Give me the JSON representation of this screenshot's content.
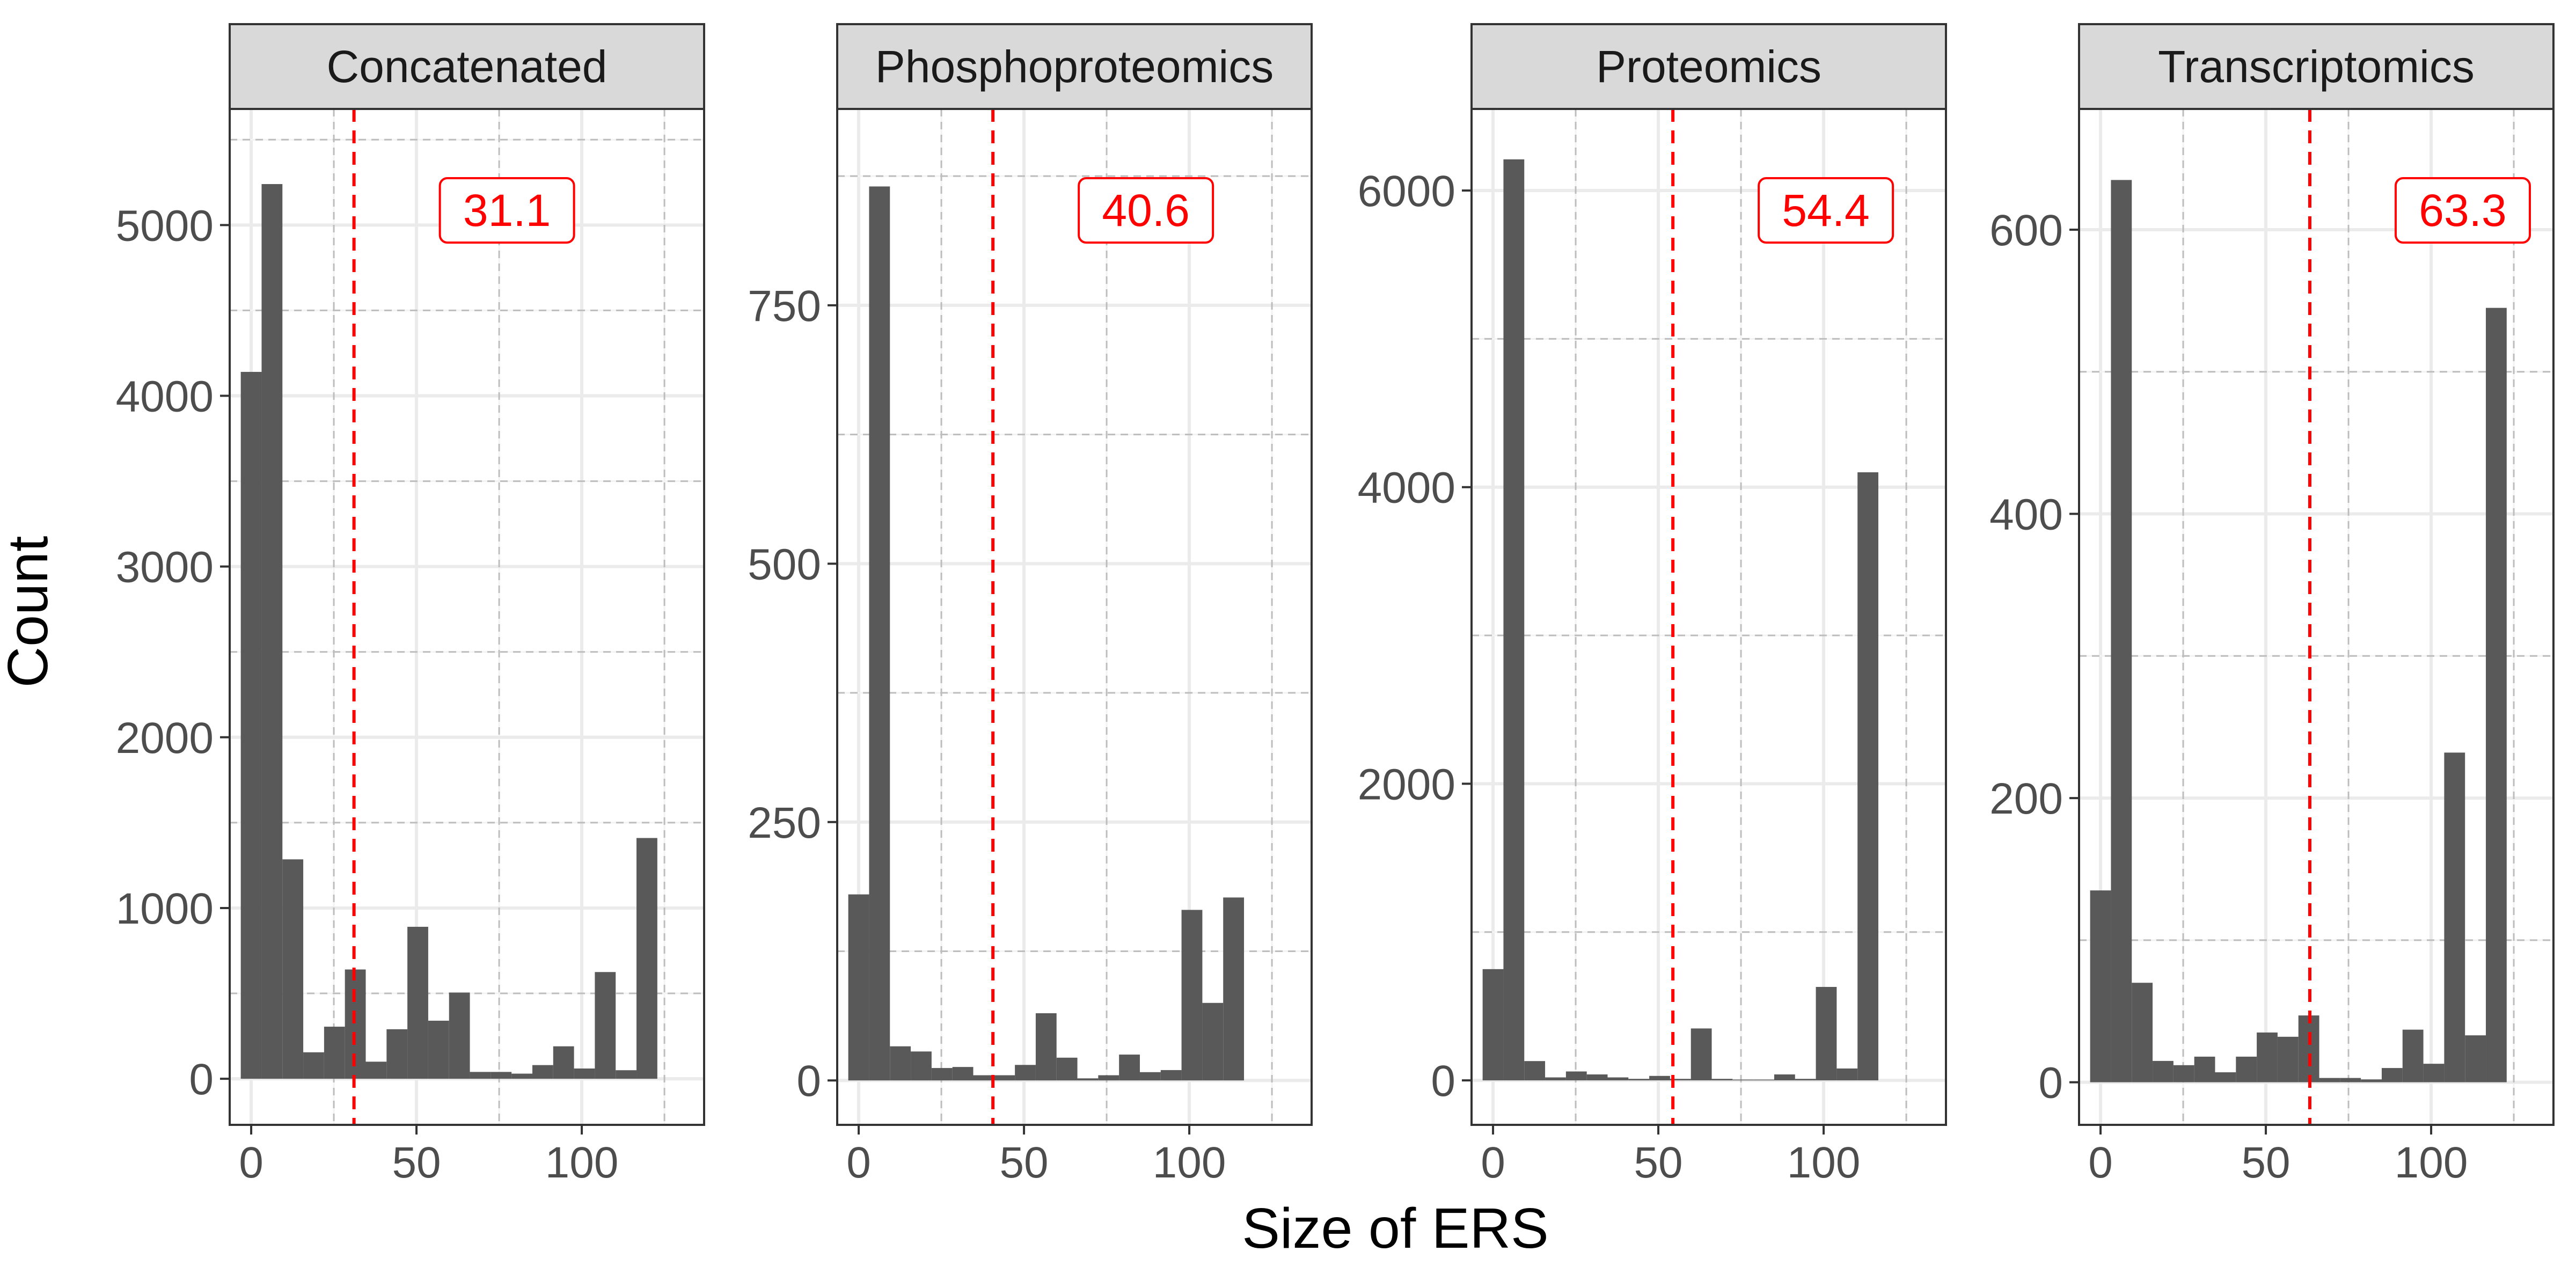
{
  "chart_data": {
    "type": "bar",
    "xlabel": "Size of ERS",
    "ylabel": "Count",
    "bin_width": 6.3,
    "bin_start": -3.15,
    "xlim": [
      -6.5,
      137
    ],
    "x_ticks": [
      0,
      50,
      100
    ],
    "panels": [
      {
        "name": "Concatenated",
        "mean_label": "31.1",
        "mean_value": 31.1,
        "ylim": [
          -270,
          5680
        ],
        "y_ticks": [
          0,
          1000,
          2000,
          3000,
          4000,
          5000
        ],
        "values": [
          4140,
          5240,
          1285,
          155,
          305,
          640,
          100,
          290,
          890,
          340,
          505,
          40,
          40,
          30,
          80,
          190,
          60,
          625,
          50,
          1410
        ]
      },
      {
        "name": "Phosphoproteomics",
        "mean_label": "40.6",
        "mean_value": 40.6,
        "ylim": [
          -43,
          940
        ],
        "y_ticks": [
          0,
          250,
          500,
          750
        ],
        "values": [
          180,
          865,
          33,
          28,
          12,
          13,
          5,
          5,
          15,
          65,
          22,
          2,
          5,
          25,
          8,
          10,
          165,
          75,
          177
        ]
      },
      {
        "name": "Proteomics",
        "mean_label": "54.4",
        "mean_value": 54.4,
        "ylim": [
          -300,
          6550
        ],
        "y_ticks": [
          0,
          2000,
          4000,
          6000
        ],
        "values": [
          750,
          6210,
          130,
          20,
          60,
          40,
          20,
          10,
          30,
          10,
          350,
          10,
          5,
          5,
          40,
          10,
          630,
          80,
          4100
        ]
      },
      {
        "name": "Transcriptomics",
        "mean_label": "63.3",
        "mean_value": 63.3,
        "ylim": [
          -30,
          685
        ],
        "y_ticks": [
          0,
          200,
          400,
          600
        ],
        "values": [
          135,
          635,
          70,
          15,
          12,
          18,
          7,
          18,
          35,
          32,
          47,
          3,
          3,
          2,
          10,
          37,
          13,
          232,
          33,
          545
        ]
      }
    ]
  }
}
